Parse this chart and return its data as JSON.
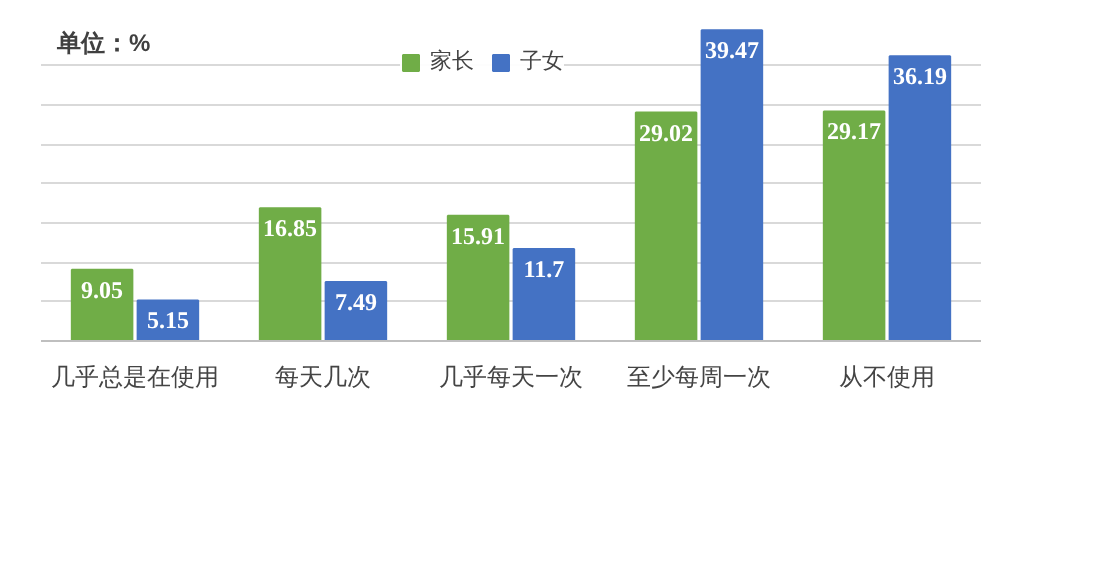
{
  "chart_data": {
    "type": "bar",
    "categories": [
      "几乎总是在使用",
      "每天几次",
      "几乎每天一次",
      "至少每周一次",
      "从不使用"
    ],
    "series": [
      {
        "name": "家长",
        "color": "#70ad47",
        "values": [
          9.05,
          16.85,
          15.91,
          29.02,
          29.17
        ]
      },
      {
        "name": "子女",
        "color": "#4472c4",
        "values": [
          5.15,
          7.49,
          11.7,
          39.47,
          36.19
        ]
      }
    ],
    "yticks": [
      {
        "value": 0,
        "label": null
      },
      {
        "value": 5,
        "label": null
      },
      {
        "value": 10,
        "label": null
      },
      {
        "value": 15,
        "label": null
      },
      {
        "value": 20,
        "label": null
      },
      {
        "value": 25,
        "label": null
      },
      {
        "value": 30,
        "label": null
      },
      {
        "value": 35,
        "label": null
      }
    ],
    "tick_labels": "x",
    "grid": "y",
    "data_labels": true,
    "legend": "top",
    "annotations": [
      "单位：%"
    ]
  }
}
